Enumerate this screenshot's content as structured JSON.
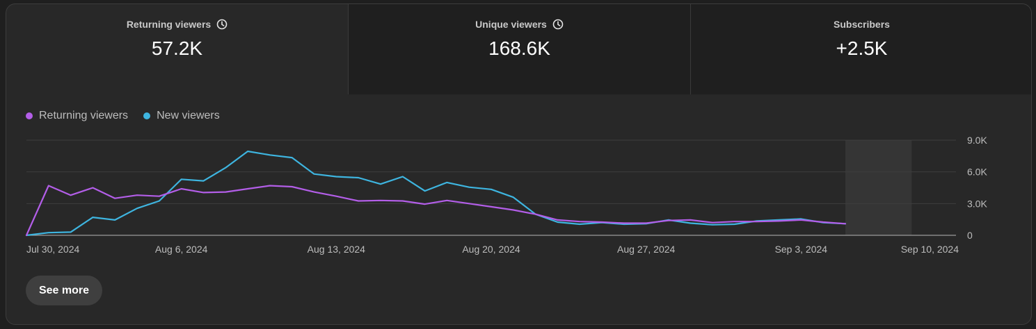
{
  "tabs": [
    {
      "label": "Returning viewers",
      "value": "57.2K",
      "clock": true
    },
    {
      "label": "Unique viewers",
      "value": "168.6K",
      "clock": true
    },
    {
      "label": "Subscribers",
      "value": "+2.5K",
      "clock": false
    }
  ],
  "legend": [
    {
      "name": "Returning viewers",
      "color": "#b35ee8"
    },
    {
      "name": "New viewers",
      "color": "#3eb5e0"
    }
  ],
  "button": {
    "see_more": "See more"
  },
  "chart_data": {
    "type": "line",
    "x_tick_labels": [
      "Jul 30, 2024",
      "Aug 6, 2024",
      "Aug 13, 2024",
      "Aug 20, 2024",
      "Aug 27, 2024",
      "Sep 3, 2024",
      "Sep 10, 2024"
    ],
    "y_tick_labels": [
      "9.0K",
      "6.0K",
      "3.0K",
      "0"
    ],
    "ylim": [
      0,
      9000
    ],
    "x_day_range": [
      0,
      42
    ],
    "incomplete_region_days": [
      37,
      40
    ],
    "series": [
      {
        "name": "Returning viewers",
        "color": "#b35ee8",
        "values": [
          0,
          4700,
          3800,
          4500,
          3500,
          3800,
          3700,
          4400,
          4050,
          4100,
          4400,
          4700,
          4600,
          4100,
          3700,
          3250,
          3300,
          3250,
          2950,
          3300,
          3000,
          2700,
          2400,
          2000,
          1450,
          1300,
          1250,
          1150,
          1150,
          1400,
          1450,
          1200,
          1300,
          1300,
          1350,
          1450,
          1250,
          1100
        ]
      },
      {
        "name": "New viewers",
        "color": "#3eb5e0",
        "values": [
          0,
          250,
          300,
          1700,
          1450,
          2550,
          3250,
          5300,
          5150,
          6400,
          7950,
          7600,
          7350,
          5800,
          5550,
          5450,
          4850,
          5550,
          4200,
          5000,
          4550,
          4350,
          3600,
          2000,
          1250,
          1050,
          1200,
          1050,
          1100,
          1450,
          1150,
          1000,
          1050,
          1350,
          1450,
          1550,
          1200,
          1100
        ]
      }
    ]
  }
}
